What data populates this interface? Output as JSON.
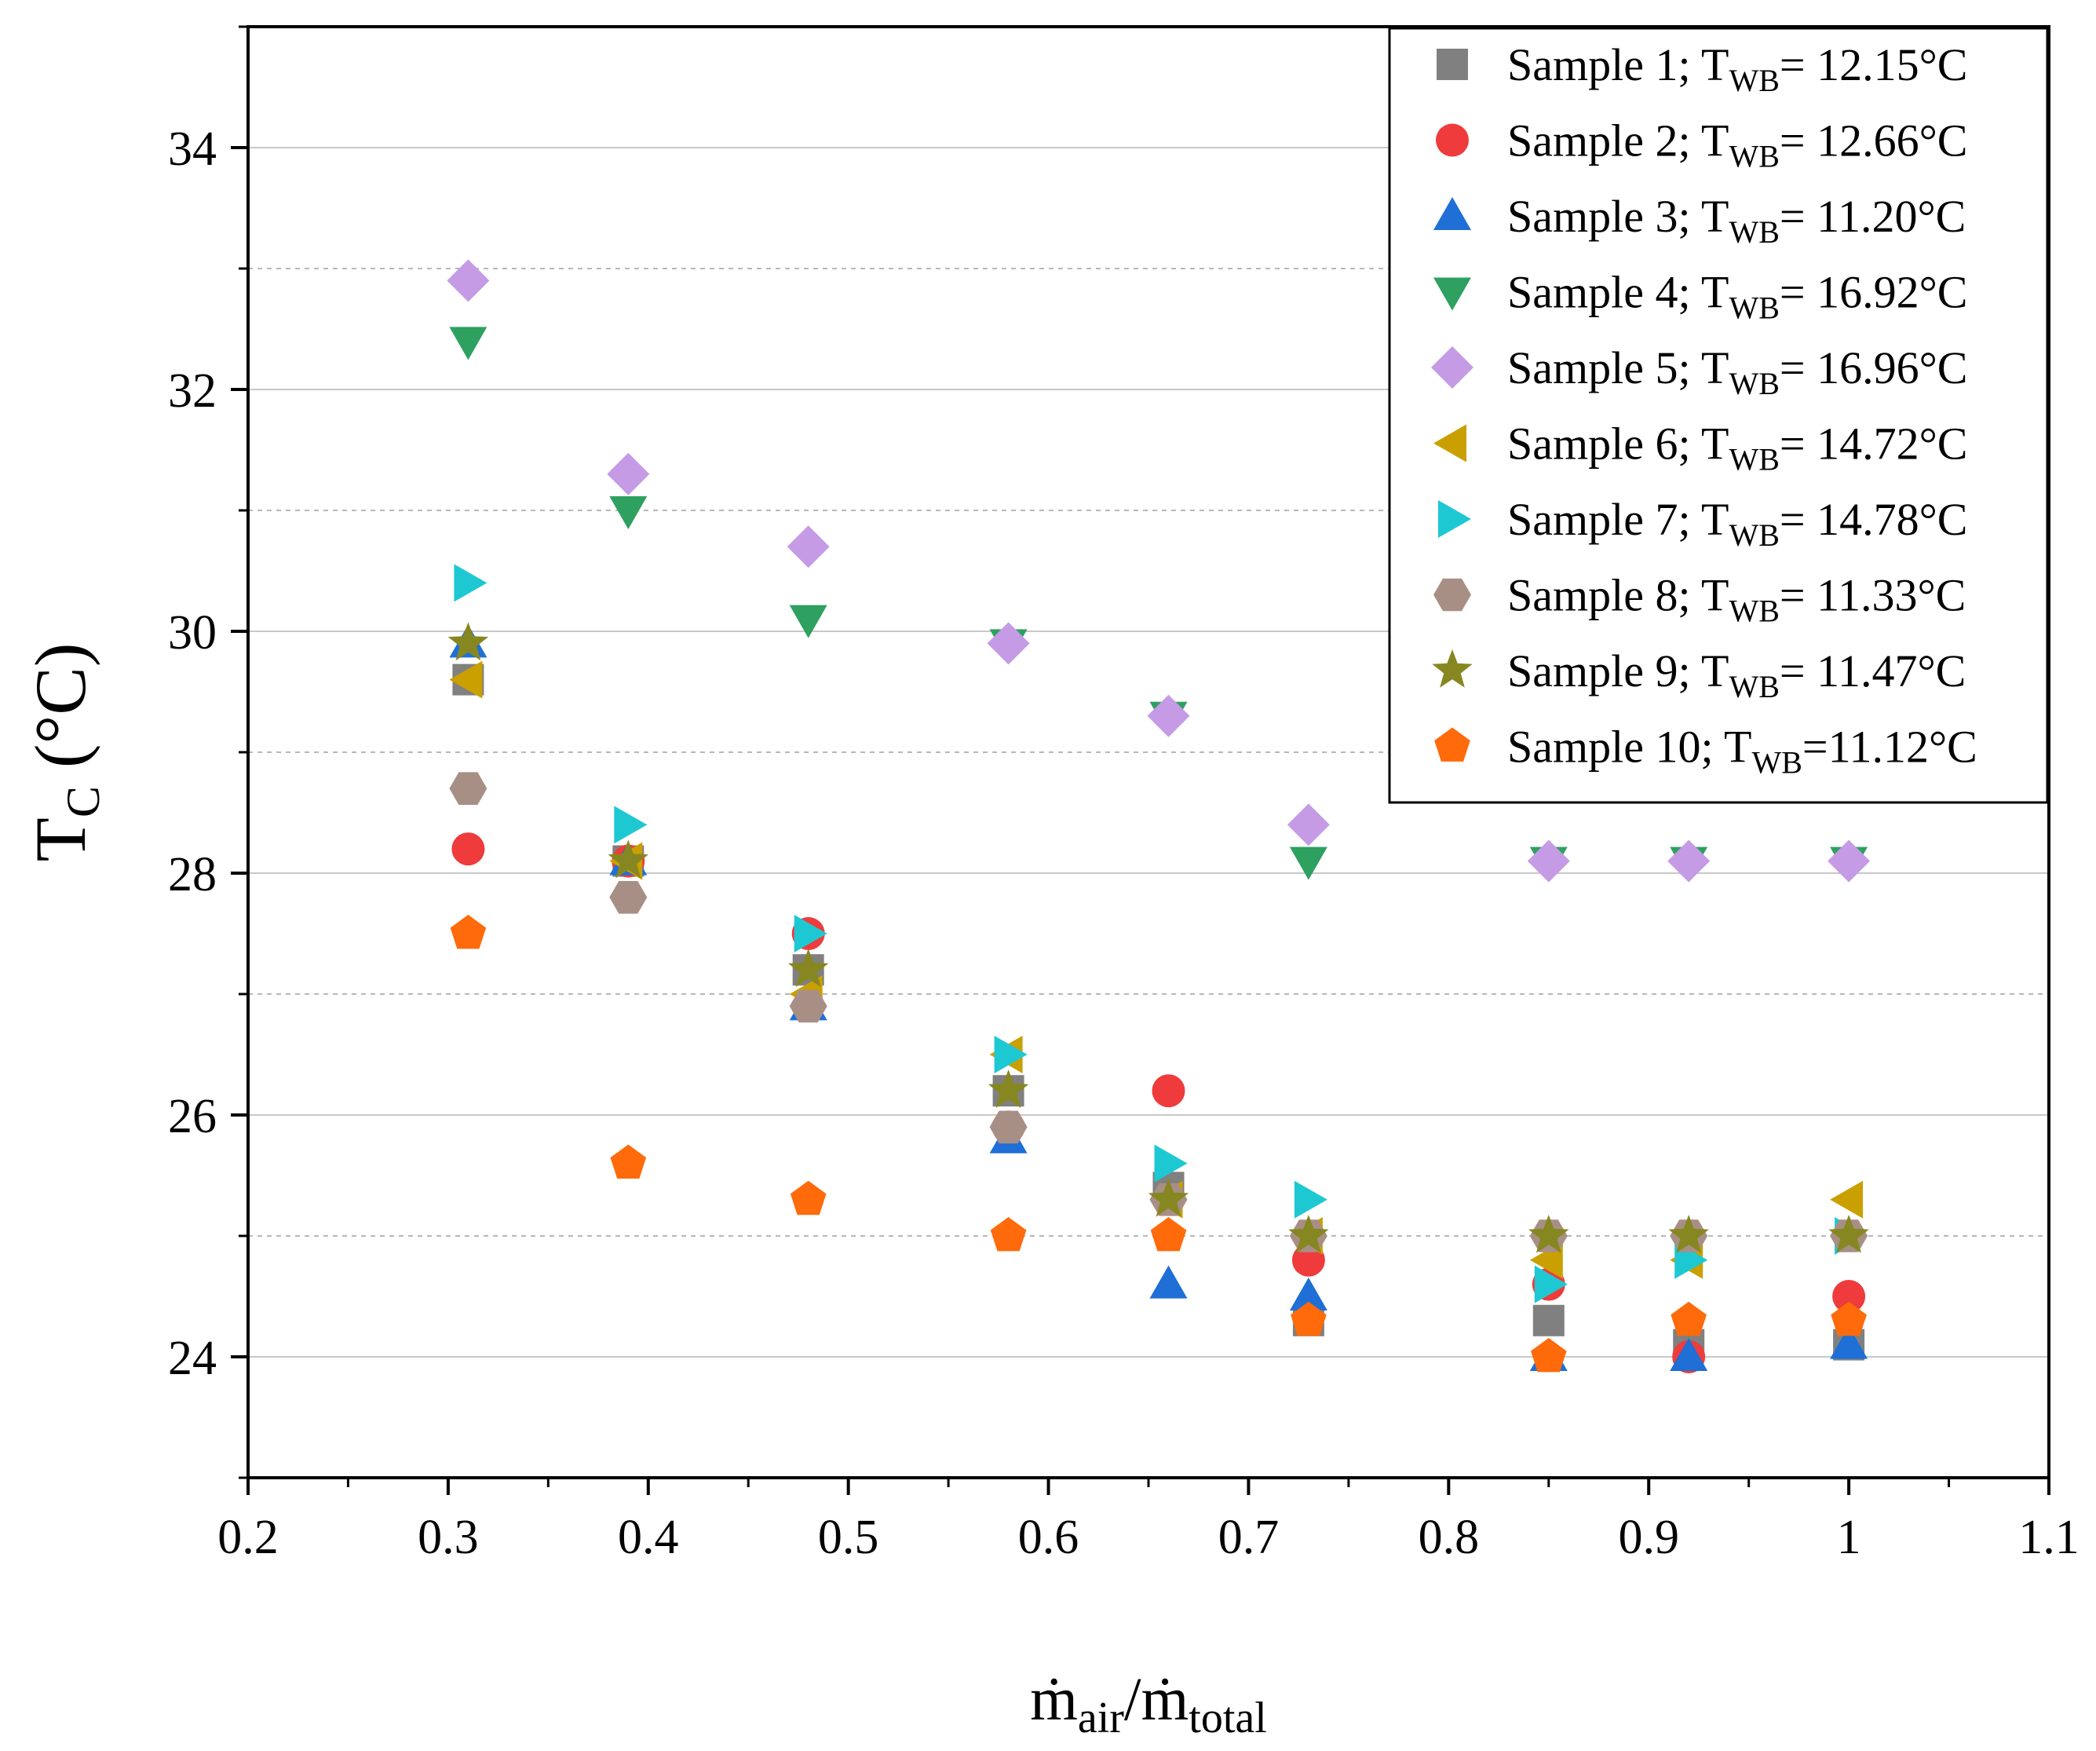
{
  "chart_data": {
    "type": "scatter",
    "title": "",
    "xlabel": {
      "main": "ṁ",
      "sub": "air",
      "sep": "/",
      "main2": "ṁ",
      "sub2": "total"
    },
    "ylabel": {
      "main": "T",
      "sub": "C",
      "unit": " (°C)"
    },
    "xlim": [
      0.2,
      1.1
    ],
    "ylim": [
      23,
      35
    ],
    "xticks": [
      "0.2",
      "0.3",
      "0.4",
      "0.5",
      "0.6",
      "0.7",
      "0.8",
      "0.9",
      "1",
      "1.1"
    ],
    "yticks": [
      "24",
      "26",
      "28",
      "30",
      "32",
      "34"
    ],
    "grid": {
      "major_y": true,
      "minor_y_dashed": true
    },
    "legend_position": "top-right",
    "series": [
      {
        "name": "Sample 1; T",
        "sub": "WB",
        "tail": "= 12.15°C",
        "marker": "square",
        "color": "#808080",
        "points": [
          [
            0.31,
            29.6
          ],
          [
            0.39,
            28.1
          ],
          [
            0.48,
            27.2
          ],
          [
            0.58,
            26.2
          ],
          [
            0.66,
            25.4
          ],
          [
            0.73,
            24.3
          ],
          [
            0.85,
            24.3
          ],
          [
            0.92,
            24.1
          ],
          [
            1.0,
            24.1
          ]
        ]
      },
      {
        "name": "Sample 2; T",
        "sub": "WB",
        "tail": "= 12.66°C",
        "marker": "circle",
        "color": "#ef3b3b",
        "points": [
          [
            0.31,
            28.2
          ],
          [
            0.39,
            28.1
          ],
          [
            0.48,
            27.5
          ],
          [
            0.58,
            25.9
          ],
          [
            0.66,
            26.2
          ],
          [
            0.73,
            24.8
          ],
          [
            0.85,
            24.6
          ],
          [
            0.92,
            24.0
          ],
          [
            1.0,
            24.5
          ]
        ]
      },
      {
        "name": "Sample 3; T",
        "sub": "WB",
        "tail": "= 11.20°C",
        "marker": "triangle-up",
        "color": "#1f6fd6",
        "points": [
          [
            0.31,
            29.9
          ],
          [
            0.39,
            28.1
          ],
          [
            0.48,
            26.9
          ],
          [
            0.58,
            25.8
          ],
          [
            0.66,
            24.6
          ],
          [
            0.73,
            24.5
          ],
          [
            0.85,
            24.0
          ],
          [
            0.92,
            24.0
          ],
          [
            1.0,
            24.1
          ]
        ]
      },
      {
        "name": "Sample 4; T",
        "sub": "WB",
        "tail": "= 16.92°C",
        "marker": "triangle-down",
        "color": "#2ea060",
        "points": [
          [
            0.31,
            32.4
          ],
          [
            0.39,
            31.0
          ],
          [
            0.48,
            30.1
          ],
          [
            0.58,
            29.9
          ],
          [
            0.66,
            29.3
          ],
          [
            0.73,
            28.1
          ],
          [
            0.85,
            28.1
          ],
          [
            0.92,
            28.1
          ],
          [
            1.0,
            28.1
          ]
        ]
      },
      {
        "name": "Sample 5; T",
        "sub": "WB",
        "tail": "= 16.96°C",
        "marker": "diamond",
        "color": "#c59be6",
        "points": [
          [
            0.31,
            32.9
          ],
          [
            0.39,
            31.3
          ],
          [
            0.48,
            30.7
          ],
          [
            0.58,
            29.9
          ],
          [
            0.66,
            29.3
          ],
          [
            0.73,
            28.4
          ],
          [
            0.85,
            28.1
          ],
          [
            0.92,
            28.1
          ],
          [
            1.0,
            28.1
          ]
        ]
      },
      {
        "name": "Sample 6; T",
        "sub": "WB",
        "tail": "= 14.72°C",
        "marker": "triangle-left",
        "color": "#c9a000",
        "points": [
          [
            0.31,
            29.6
          ],
          [
            0.39,
            28.1
          ],
          [
            0.48,
            27.0
          ],
          [
            0.58,
            26.5
          ],
          [
            0.66,
            25.3
          ],
          [
            0.73,
            25.0
          ],
          [
            0.85,
            24.8
          ],
          [
            0.92,
            24.8
          ],
          [
            1.0,
            25.3
          ]
        ]
      },
      {
        "name": "Sample 7; T",
        "sub": "WB",
        "tail": "= 14.78°C",
        "marker": "triangle-right",
        "color": "#1ec8d2",
        "points": [
          [
            0.31,
            30.4
          ],
          [
            0.39,
            28.4
          ],
          [
            0.48,
            27.5
          ],
          [
            0.58,
            26.5
          ],
          [
            0.66,
            25.6
          ],
          [
            0.73,
            25.3
          ],
          [
            0.85,
            24.6
          ],
          [
            0.92,
            24.8
          ],
          [
            1.0,
            25.0
          ]
        ]
      },
      {
        "name": "Sample 8; T",
        "sub": "WB",
        "tail": "= 11.33°C",
        "marker": "hexagon",
        "color": "#a88f86",
        "points": [
          [
            0.31,
            28.7
          ],
          [
            0.39,
            27.8
          ],
          [
            0.48,
            26.9
          ],
          [
            0.58,
            25.9
          ],
          [
            0.66,
            25.3
          ],
          [
            0.73,
            25.0
          ],
          [
            0.85,
            25.0
          ],
          [
            0.92,
            25.0
          ],
          [
            1.0,
            25.0
          ]
        ]
      },
      {
        "name": "Sample 9; T",
        "sub": "WB",
        "tail": "= 11.47°C",
        "marker": "star",
        "color": "#878722",
        "points": [
          [
            0.31,
            29.9
          ],
          [
            0.39,
            28.1
          ],
          [
            0.48,
            27.2
          ],
          [
            0.58,
            26.2
          ],
          [
            0.66,
            25.3
          ],
          [
            0.73,
            25.0
          ],
          [
            0.85,
            25.0
          ],
          [
            0.92,
            25.0
          ],
          [
            1.0,
            25.0
          ]
        ]
      },
      {
        "name": "Sample 10; T",
        "sub": "WB",
        "tail": "=11.12°C",
        "marker": "pentagon",
        "color": "#ff6a0a",
        "points": [
          [
            0.31,
            27.5
          ],
          [
            0.39,
            25.6
          ],
          [
            0.48,
            25.3
          ],
          [
            0.58,
            25.0
          ],
          [
            0.66,
            25.0
          ],
          [
            0.73,
            24.3
          ],
          [
            0.85,
            24.0
          ],
          [
            0.92,
            24.3
          ],
          [
            1.0,
            24.3
          ]
        ]
      }
    ]
  }
}
